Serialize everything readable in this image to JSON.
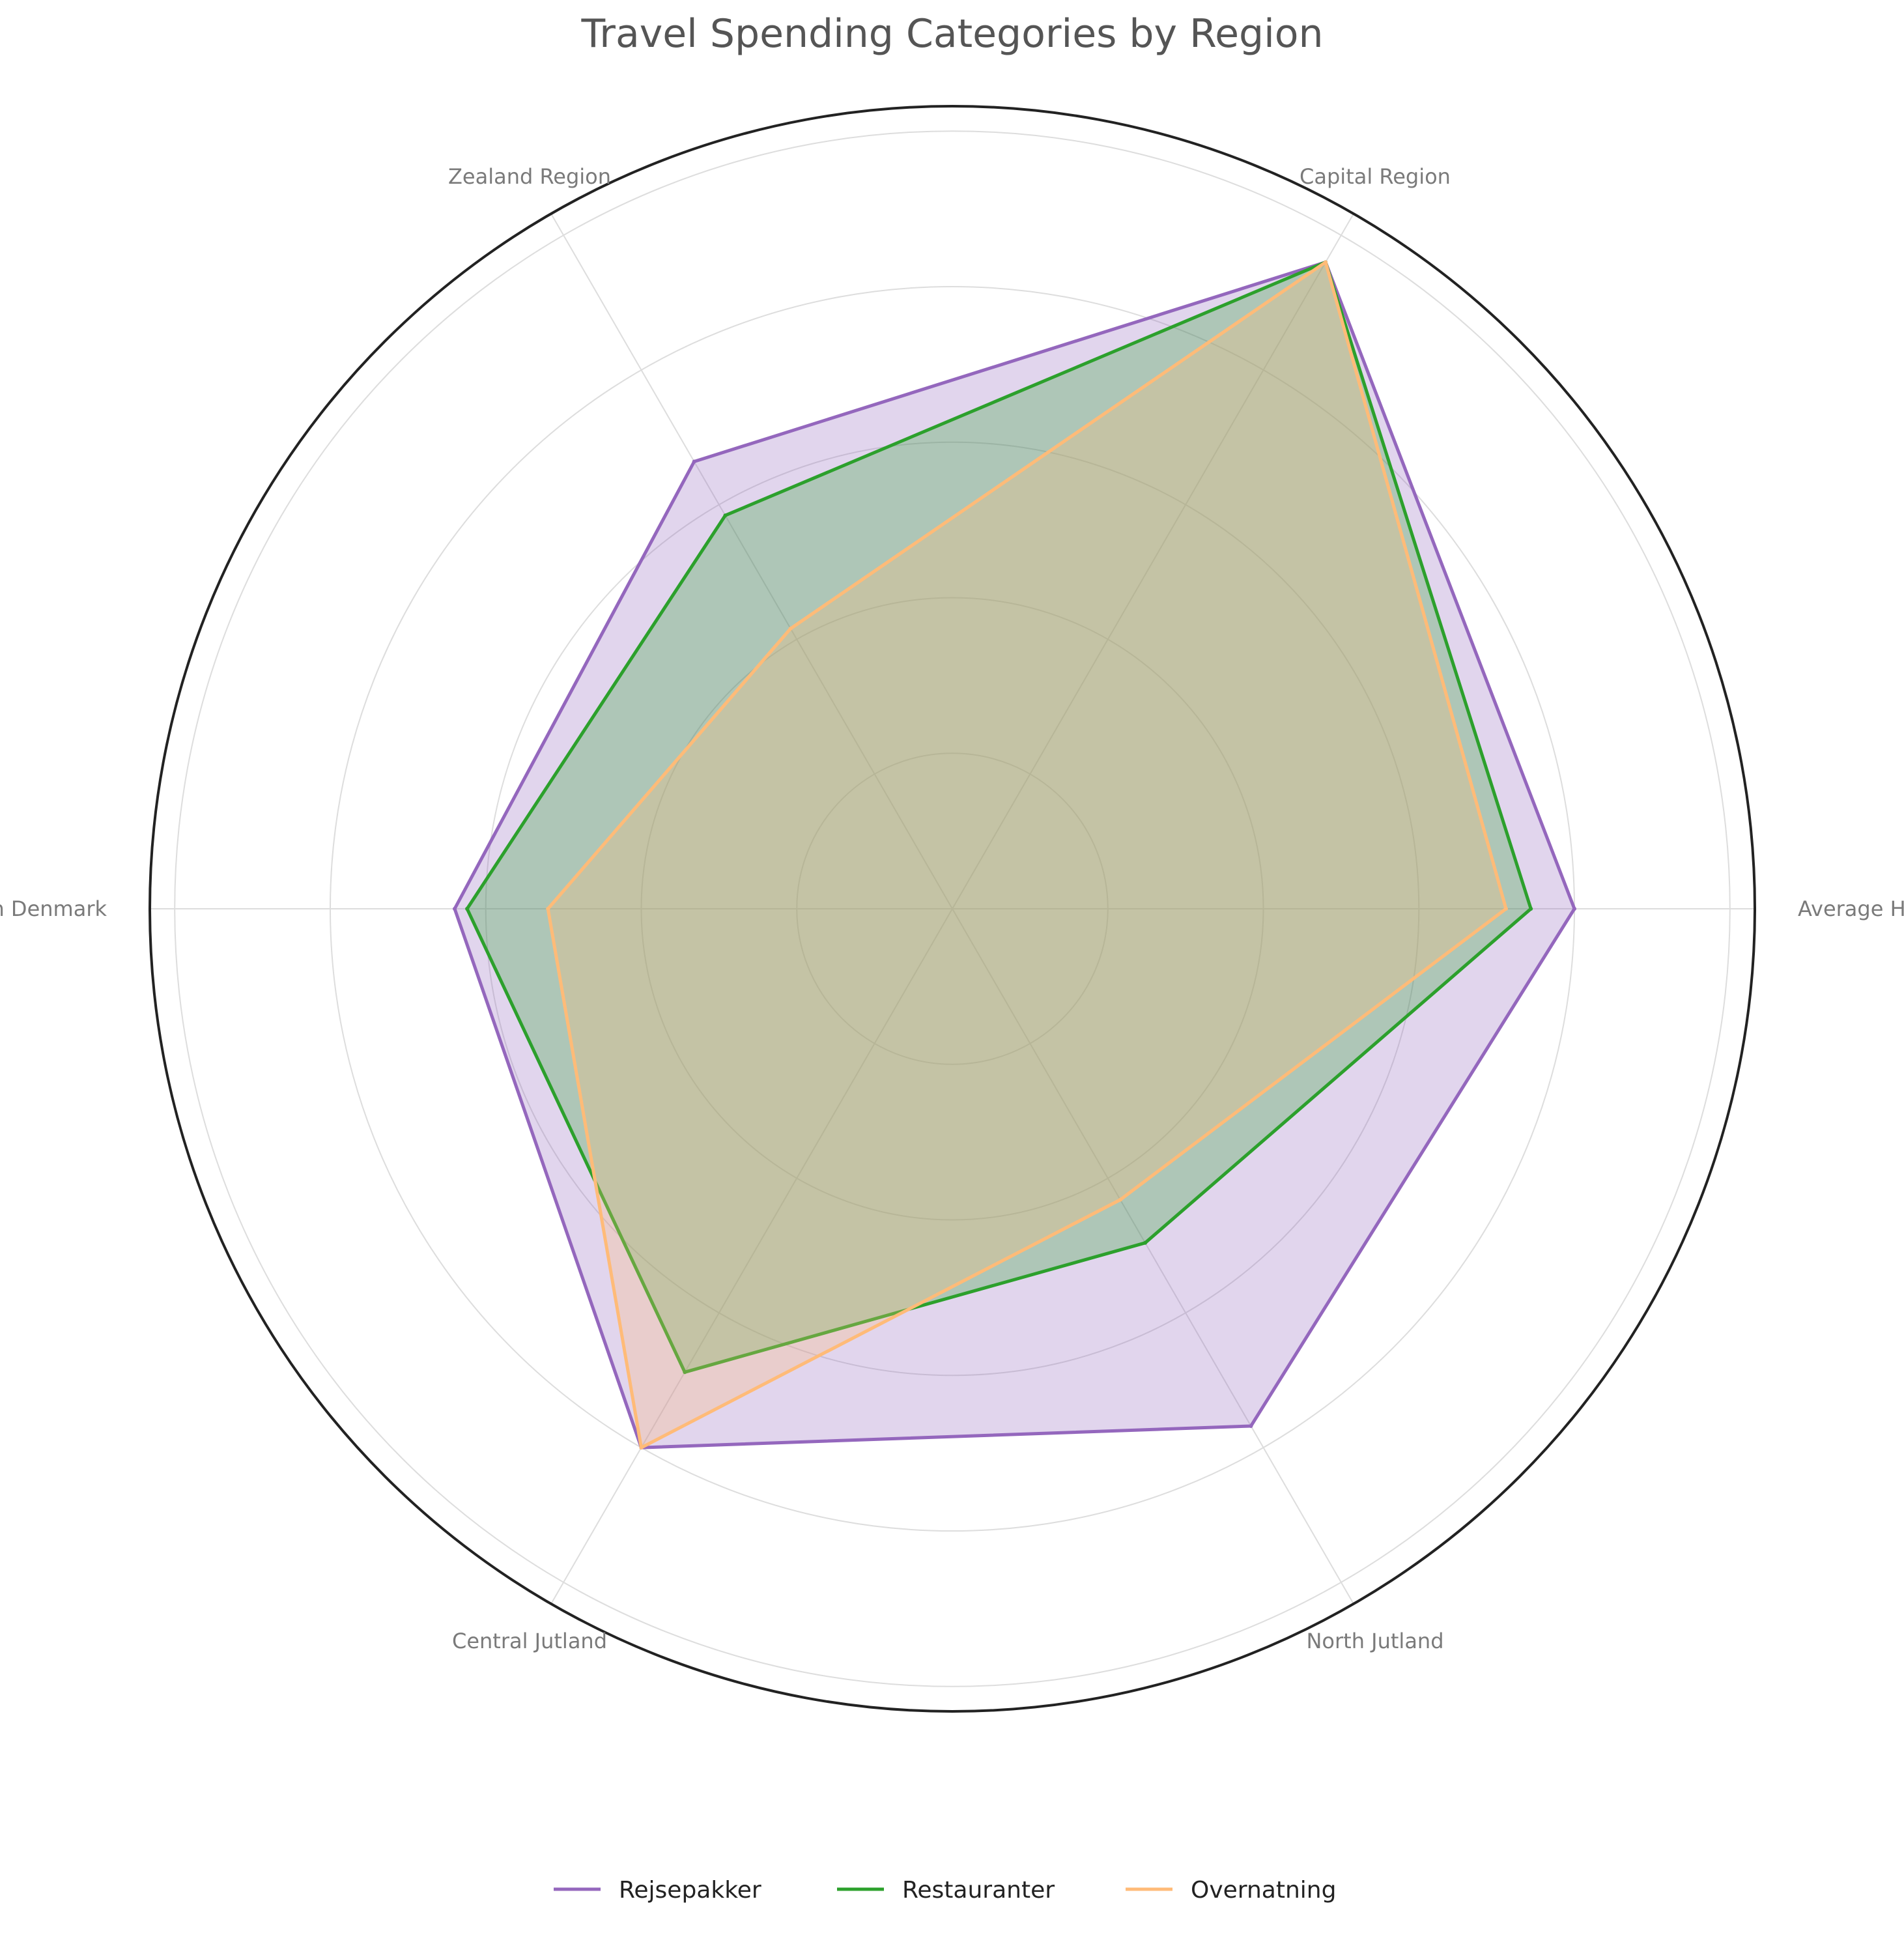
{
  "chart_data": {
    "type": "radar",
    "title": "Travel Spending Categories by Region",
    "axes": [
      "Average Household",
      "Capital Region",
      "Zealand Region",
      "Southern Denmark",
      "Central Jutland",
      "North Jutland"
    ],
    "series": [
      {
        "name": "Rejsepakker",
        "values": [
          1.0,
          1.2,
          0.83,
          0.8,
          1.0,
          0.96
        ],
        "color": "#9467bd"
      },
      {
        "name": "Restauranter",
        "values": [
          0.93,
          1.2,
          0.73,
          0.78,
          0.86,
          0.62
        ],
        "color": "#2ca02c"
      },
      {
        "name": "Overnatning",
        "values": [
          0.89,
          1.2,
          0.52,
          0.65,
          1.0,
          0.54
        ],
        "color": "#ffbb78"
      }
    ],
    "rlim": [
      0,
      1.29
    ],
    "grid_rings": [
      0.25,
      0.5,
      0.75,
      1.0,
      1.25
    ],
    "grid": true,
    "legend_position": "bottom-center"
  }
}
